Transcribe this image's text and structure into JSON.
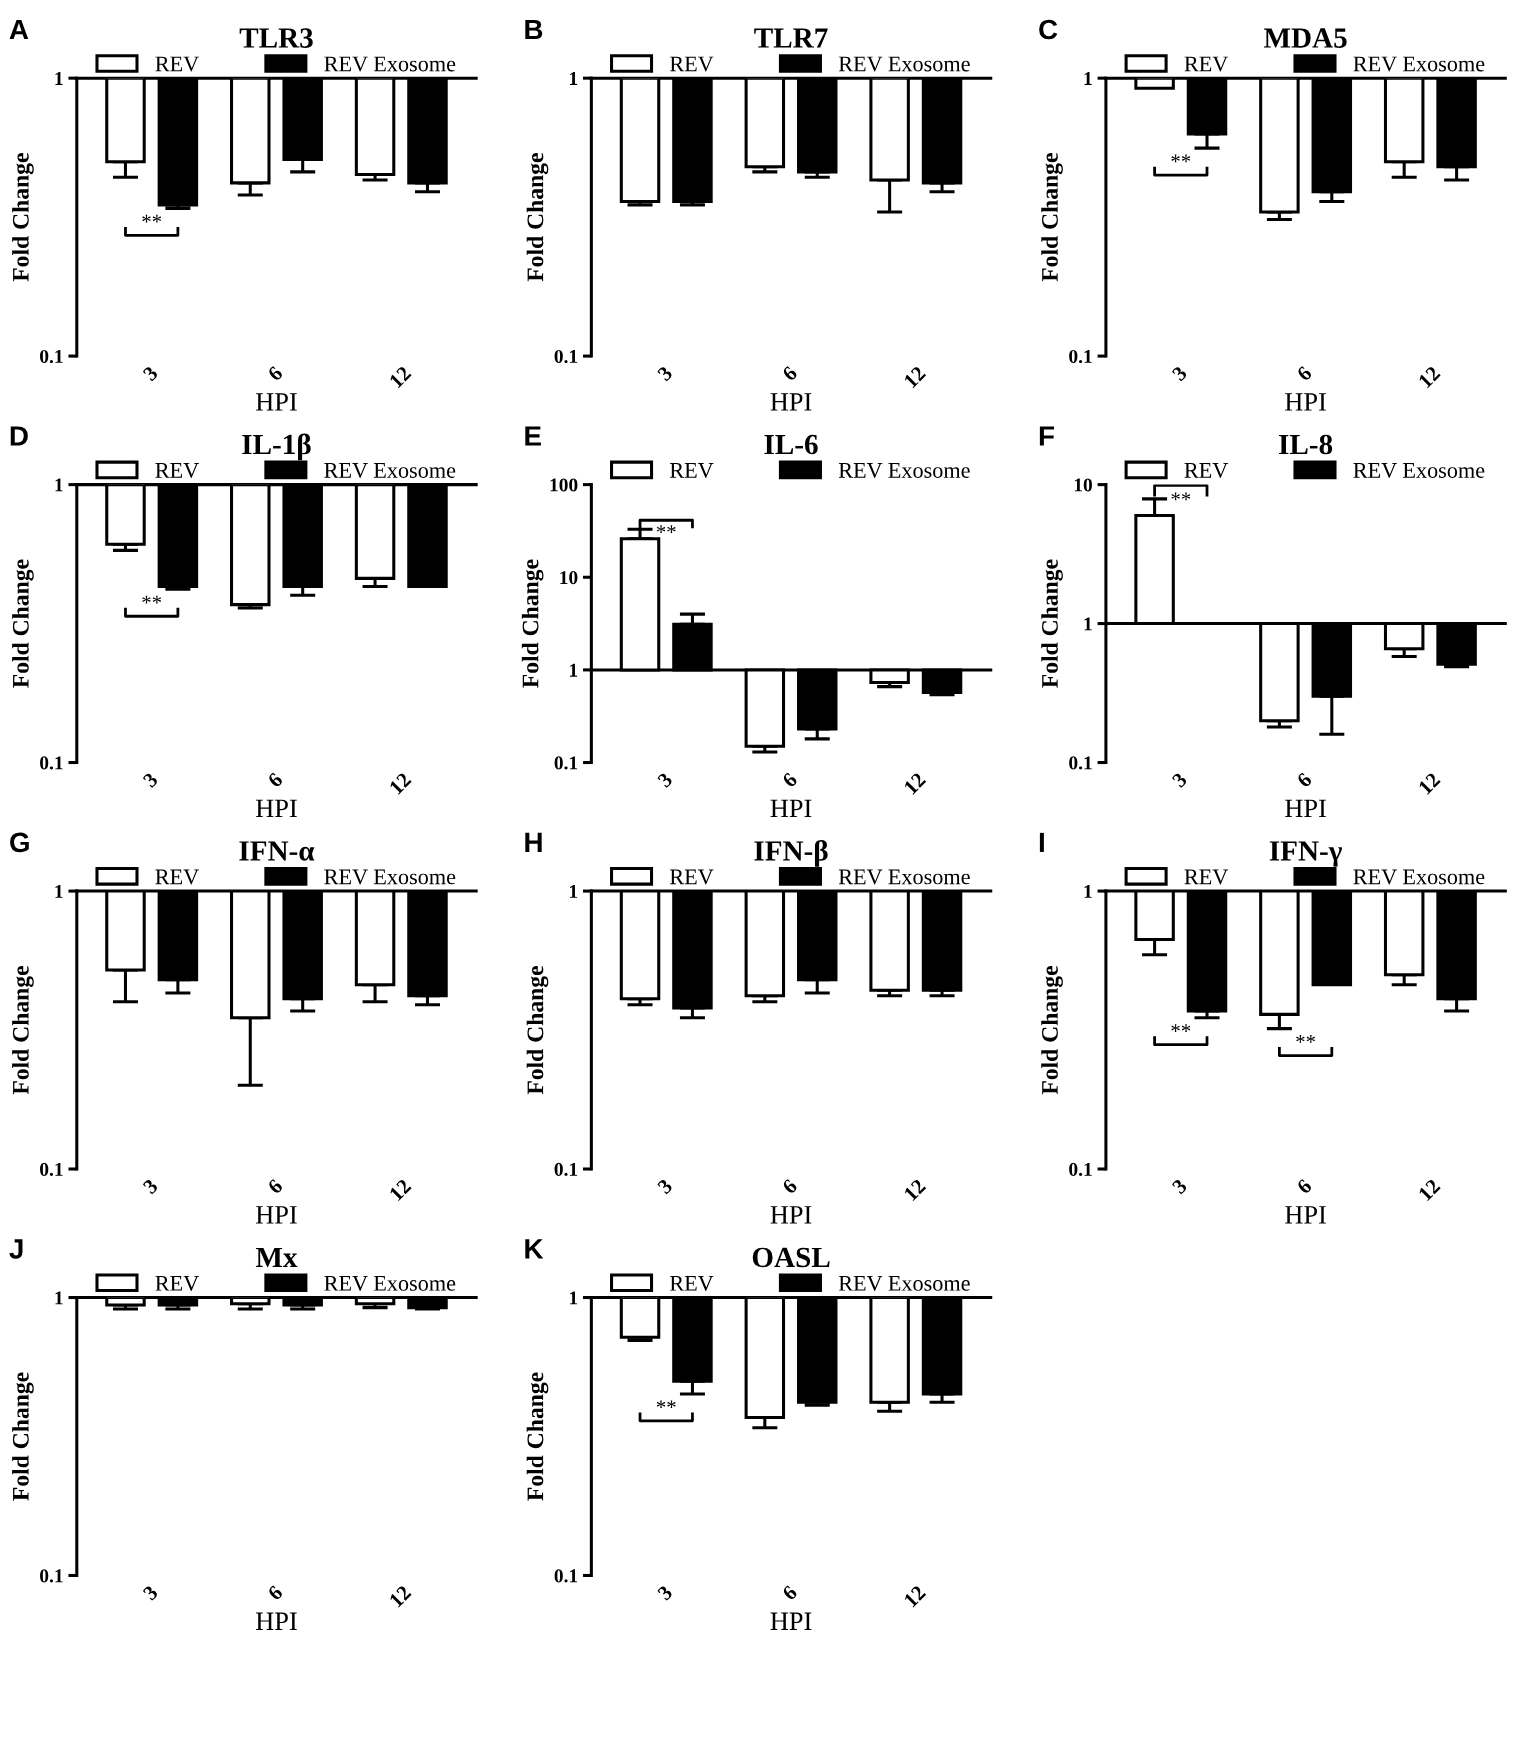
{
  "chart_data": [
    {
      "type": "bar",
      "title": "TLR3",
      "xlabel": "HPI",
      "ylabel": "Fold Change",
      "categories": [
        "3",
        "6",
        "12"
      ],
      "log": true,
      "ylim": [
        0.1,
        1
      ],
      "yticks": [
        0.1,
        1
      ],
      "legend": "top",
      "series": [
        {
          "name": "REV",
          "color": "#ffffff",
          "base": [
            1,
            1,
            1
          ],
          "values": [
            -0.5,
            -0.58,
            -0.55
          ],
          "errors": [
            [
              0.44,
              0.5
            ],
            [
              0.38,
              0.42
            ],
            [
              0.43,
              0.45
            ]
          ]
        },
        {
          "name": "REV Exosome",
          "color": "#000000",
          "base": [
            1,
            1,
            1
          ],
          "values": [
            -0.65,
            -0.49,
            -0.58
          ],
          "errors": [
            [
              0.34,
              0.35
            ],
            [
              0.46,
              0.51
            ],
            [
              0.39,
              0.42
            ]
          ]
        }
      ],
      "annotations": [
        "A",
        "**"
      ]
    },
    {
      "type": "bar",
      "title": "TLR7",
      "xlabel": "HPI",
      "ylabel": "Fold Change",
      "categories": [
        "3",
        "6",
        "12"
      ],
      "log": true,
      "ylim": [
        0.1,
        1
      ],
      "yticks": [
        0.1,
        1
      ],
      "legend": "top",
      "series": [
        {
          "name": "REV",
          "color": "#ffffff",
          "base": [
            1,
            1,
            1
          ],
          "values": [
            -0.64,
            -0.52,
            -0.57
          ],
          "errors": [
            [
              0.35,
              0.36
            ],
            [
              0.46,
              0.48
            ],
            [
              0.33,
              0.43
            ]
          ]
        },
        {
          "name": "REV Exosome",
          "color": "#000000",
          "base": [
            1,
            1,
            1
          ],
          "values": [
            -0.64,
            -0.54,
            -0.58
          ],
          "errors": [
            [
              0.35,
              0.36
            ],
            [
              0.44,
              0.46
            ],
            [
              0.39,
              0.42
            ]
          ]
        }
      ],
      "annotations": [
        "B"
      ]
    },
    {
      "type": "bar",
      "title": "MDA5",
      "xlabel": "HPI",
      "ylabel": "Fold Change",
      "categories": [
        "3",
        "6",
        "12"
      ],
      "log": true,
      "ylim": [
        0.1,
        1
      ],
      "yticks": [
        0.1,
        1
      ],
      "legend": "top",
      "series": [
        {
          "name": "REV",
          "color": "#ffffff",
          "base": [
            1,
            1,
            1
          ],
          "values": [
            -0.08,
            -0.67,
            -0.5
          ],
          "errors": [
            null,
            [
              0.31,
              0.33
            ],
            [
              0.44,
              0.5
            ]
          ]
        },
        {
          "name": "REV Exosome",
          "color": "#000000",
          "base": [
            1,
            1,
            1
          ],
          "values": [
            -0.37,
            -0.61,
            -0.52
          ],
          "errors": [
            [
              0.56,
              0.63
            ],
            [
              0.36,
              0.39
            ],
            [
              0.43,
              0.48
            ]
          ]
        }
      ],
      "annotations": [
        "C",
        "**"
      ]
    },
    {
      "type": "bar",
      "title": "IL-1β",
      "xlabel": "HPI",
      "ylabel": "Fold Change",
      "categories": [
        "3",
        "6",
        "12"
      ],
      "log": true,
      "ylim": [
        0.1,
        1
      ],
      "yticks": [
        0.1,
        1
      ],
      "legend": "top",
      "series": [
        {
          "name": "REV",
          "color": "#ffffff",
          "base": [
            1,
            1,
            1
          ],
          "values": [
            -0.39,
            -0.63,
            -0.54
          ],
          "errors": [
            [
              0.58,
              0.61
            ],
            [
              0.36,
              0.37
            ],
            [
              0.43,
              0.46
            ]
          ]
        },
        {
          "name": "REV Exosome",
          "color": "#000000",
          "base": [
            1,
            1,
            1
          ],
          "values": [
            -0.57,
            -0.57,
            -0.57
          ],
          "errors": [
            [
              0.42,
              0.43
            ],
            [
              0.4,
              0.43
            ],
            null
          ]
        }
      ],
      "annotations": [
        "D",
        "**"
      ]
    },
    {
      "type": "bar",
      "title": "IL-6",
      "xlabel": "HPI",
      "ylabel": "Fold Change",
      "categories": [
        "3",
        "6",
        "12"
      ],
      "log": true,
      "ylim": [
        0.1,
        100
      ],
      "yticks": [
        0.1,
        1,
        10,
        100
      ],
      "legend": "top",
      "series": [
        {
          "name": "REV",
          "color": "#ffffff",
          "base": [
            1,
            1,
            1
          ],
          "values": [
            25,
            -0.85,
            -0.27
          ],
          "errors": [
            [
              26,
              33
            ],
            [
              0.13,
              0.15
            ],
            [
              0.66,
              0.73
            ]
          ]
        },
        {
          "name": "REV Exosome",
          "color": "#000000",
          "base": [
            1,
            1,
            1
          ],
          "values": [
            2.1,
            -0.77,
            -0.43
          ],
          "errors": [
            [
              3.1,
              4.0
            ],
            [
              0.18,
              0.23
            ],
            [
              0.54,
              0.57
            ]
          ]
        }
      ],
      "annotations": [
        "E",
        "**"
      ]
    },
    {
      "type": "bar",
      "title": "IL-8",
      "xlabel": "HPI",
      "ylabel": "Fold Change",
      "categories": [
        "3",
        "6",
        "12"
      ],
      "log": true,
      "ylim": [
        0.1,
        10
      ],
      "yticks": [
        0.1,
        1,
        10
      ],
      "legend": "top",
      "series": [
        {
          "name": "REV",
          "color": "#ffffff",
          "base": [
            1,
            1,
            1
          ],
          "values": [
            5.0,
            -0.8,
            -0.34
          ],
          "errors": [
            [
              6.0,
              7.9
            ],
            [
              0.18,
              0.2
            ],
            [
              0.58,
              0.66
            ]
          ]
        },
        {
          "name": "REV Exosome",
          "color": "#000000",
          "base": [
            1,
            1,
            1
          ],
          "values": [
            0,
            -0.7,
            -0.49
          ],
          "errors": [
            null,
            [
              0.16,
              0.3
            ],
            [
              0.49,
              0.51
            ]
          ]
        }
      ],
      "annotations": [
        "F",
        "**"
      ]
    },
    {
      "type": "bar",
      "title": "IFN-α",
      "xlabel": "HPI",
      "ylabel": "Fold Change",
      "categories": [
        "3",
        "6",
        "12"
      ],
      "log": true,
      "ylim": [
        0.1,
        1
      ],
      "yticks": [
        0.1,
        1
      ],
      "legend": "top",
      "series": [
        {
          "name": "REV",
          "color": "#ffffff",
          "base": [
            1,
            1,
            1
          ],
          "values": [
            -0.48,
            -0.65,
            -0.54
          ],
          "errors": [
            [
              0.4,
              0.52
            ],
            [
              0.2,
              0.35
            ],
            [
              0.4,
              0.46
            ]
          ]
        },
        {
          "name": "REV Exosome",
          "color": "#000000",
          "base": [
            1,
            1,
            1
          ],
          "values": [
            -0.52,
            -0.59,
            -0.58
          ],
          "errors": [
            [
              0.43,
              0.48
            ],
            [
              0.37,
              0.41
            ],
            [
              0.39,
              0.42
            ]
          ]
        }
      ],
      "annotations": [
        "G"
      ]
    },
    {
      "type": "bar",
      "title": "IFN-β",
      "xlabel": "HPI",
      "ylabel": "Fold Change",
      "categories": [
        "3",
        "6",
        "12"
      ],
      "log": true,
      "ylim": [
        0.1,
        1
      ],
      "yticks": [
        0.1,
        1
      ],
      "legend": "top",
      "series": [
        {
          "name": "REV",
          "color": "#ffffff",
          "base": [
            1,
            1,
            1
          ],
          "values": [
            -0.59,
            -0.58,
            -0.56
          ],
          "errors": [
            [
              0.39,
              0.41
            ],
            [
              0.4,
              0.42
            ],
            [
              0.42,
              0.44
            ]
          ]
        },
        {
          "name": "REV Exosome",
          "color": "#000000",
          "base": [
            1,
            1,
            1
          ],
          "values": [
            -0.62,
            -0.52,
            -0.56
          ],
          "errors": [
            [
              0.35,
              0.38
            ],
            [
              0.43,
              0.48
            ],
            [
              0.42,
              0.44
            ]
          ]
        }
      ],
      "annotations": [
        "H"
      ]
    },
    {
      "type": "bar",
      "title": "IFN-γ",
      "xlabel": "HPI",
      "ylabel": "Fold Change",
      "categories": [
        "3",
        "6",
        "12"
      ],
      "log": true,
      "ylim": [
        0.1,
        1
      ],
      "yticks": [
        0.1,
        1
      ],
      "legend": "top",
      "series": [
        {
          "name": "REV",
          "color": "#ffffff",
          "base": [
            1,
            1,
            1
          ],
          "values": [
            -0.33,
            -0.64,
            -0.5
          ],
          "errors": [
            [
              0.59,
              0.67
            ],
            [
              0.32,
              0.36
            ],
            [
              0.46,
              0.5
            ]
          ]
        },
        {
          "name": "REV Exosome",
          "color": "#000000",
          "base": [
            1,
            1,
            1
          ],
          "values": [
            -0.63,
            -0.54,
            -0.59
          ],
          "errors": [
            [
              0.35,
              0.37
            ],
            null,
            [
              0.37,
              0.41
            ]
          ]
        }
      ],
      "annotations": [
        "I",
        "**",
        "**"
      ]
    },
    {
      "type": "bar",
      "title": "Mx",
      "xlabel": "HPI",
      "ylabel": "Fold Change",
      "categories": [
        "3",
        "6",
        "12"
      ],
      "log": true,
      "ylim": [
        0.1,
        1
      ],
      "yticks": [
        0.1,
        1
      ],
      "legend": "top",
      "series": [
        {
          "name": "REV",
          "color": "#ffffff",
          "base": [
            1,
            1,
            1
          ],
          "values": [
            -0.06,
            -0.05,
            -0.05
          ],
          "errors": [
            [
              0.91,
              0.94
            ],
            [
              0.91,
              0.95
            ],
            [
              0.92,
              0.95
            ]
          ]
        },
        {
          "name": "REV Exosome",
          "color": "#000000",
          "base": [
            1,
            1,
            1
          ],
          "values": [
            -0.06,
            -0.06,
            -0.08
          ],
          "errors": [
            [
              0.91,
              0.94
            ],
            [
              0.91,
              0.94
            ],
            [
              0.91,
              0.92
            ]
          ]
        }
      ],
      "annotations": [
        "J"
      ]
    },
    {
      "type": "bar",
      "title": "OASL",
      "xlabel": "HPI",
      "ylabel": "Fold Change",
      "categories": [
        "3",
        "6",
        "12"
      ],
      "log": true,
      "ylim": [
        0.1,
        1
      ],
      "yticks": [
        0.1,
        1
      ],
      "legend": "top",
      "series": [
        {
          "name": "REV",
          "color": "#ffffff",
          "base": [
            1,
            1,
            1
          ],
          "values": [
            -0.28,
            -0.63,
            -0.58
          ],
          "errors": [
            [
              0.7,
              0.72
            ],
            [
              0.34,
              0.37
            ],
            [
              0.39,
              0.42
            ]
          ]
        },
        {
          "name": "REV Exosome",
          "color": "#000000",
          "base": [
            1,
            1,
            1
          ],
          "values": [
            -0.5,
            -0.58,
            -0.55
          ],
          "errors": [
            [
              0.45,
              0.5
            ],
            [
              0.41,
              0.42
            ],
            [
              0.42,
              0.45
            ]
          ]
        }
      ],
      "annotations": [
        "K",
        "**"
      ]
    }
  ]
}
